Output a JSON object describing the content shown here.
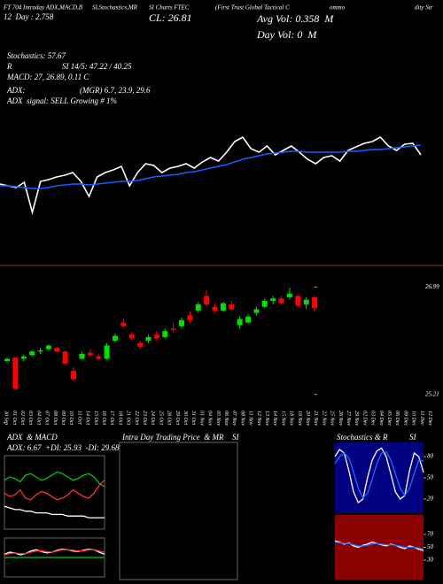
{
  "chart_data": [
    {
      "type": "line",
      "annotations": [
        "FT 704 Intraday ADX,MACD,B",
        "SI,Stochastics,MR",
        "SI Charts FTEC",
        "(First Trust Global Tactical C",
        "ommo",
        "dity Str",
        "12  Day : 2.758",
        "CL: 26.81",
        "Avg Vol: 0.358  M",
        "Day Vol: 0  M",
        "Stochastics: 57.67",
        "R",
        "SI 14/5: 47.22 / 40.25",
        "MACD: 27, 26.89, 0.11 C",
        "ADX:",
        "(MGR) 6.7, 23.9, 29.6",
        "ADX  signal: SELL Growing # 1%"
      ],
      "ylim": [
        24.8,
        27.4
      ],
      "series": [
        {
          "color": "#ffffff",
          "values": [
            25.84,
            25.8,
            25.76,
            25.88,
            25.2,
            25.9,
            25.94,
            26.0,
            26.04,
            26.1,
            25.9,
            25.56,
            26.0,
            26.1,
            26.16,
            26.24,
            25.8,
            26.1,
            26.3,
            26.26,
            26.1,
            26.2,
            26.24,
            26.3,
            26.2,
            26.34,
            26.44,
            26.36,
            26.56,
            26.8,
            26.9,
            26.64,
            26.56,
            26.7,
            26.5,
            26.6,
            26.7,
            26.56,
            26.4,
            26.3,
            26.44,
            26.48,
            26.36,
            26.6,
            26.68,
            26.76,
            26.8,
            26.9,
            26.7,
            26.6,
            26.74,
            26.76,
            26.5
          ]
        },
        {
          "color": "#1560ff",
          "values": [
            25.8,
            25.8,
            25.78,
            25.76,
            25.74,
            25.74,
            25.76,
            25.8,
            25.82,
            25.84,
            25.84,
            25.82,
            25.84,
            25.86,
            25.88,
            25.9,
            25.9,
            25.92,
            25.96,
            26.0,
            26.02,
            26.04,
            26.06,
            26.1,
            26.12,
            26.16,
            26.2,
            26.24,
            26.28,
            26.34,
            26.4,
            26.44,
            26.48,
            26.52,
            26.54,
            26.56,
            26.58,
            26.58,
            26.56,
            26.56,
            26.56,
            26.56,
            26.56,
            26.58,
            26.58,
            26.6,
            26.62,
            26.62,
            26.64,
            26.66,
            26.68,
            26.7,
            26.72
          ]
        }
      ]
    },
    {
      "type": "candlestick",
      "categories": [
        "30 Sep",
        "01 Oct",
        "02 Oct",
        "03 Oct",
        "04 Oct",
        "07 Oct",
        "08 Oct",
        "09 Oct",
        "10 Oct",
        "11 Oct",
        "14 Oct",
        "15 Oct",
        "16 Oct",
        "17 Oct",
        "18 Oct",
        "21 Oct",
        "22 Oct",
        "23 Oct",
        "24 Oct",
        "25 Oct",
        "28 Oct",
        "29 Oct",
        "30 Oct",
        "31 Oct",
        "01 Nov",
        "04 Nov",
        "05 Nov",
        "06 Nov",
        "07 Nov",
        "08 Nov",
        "11 Nov",
        "12 Nov",
        "13 Nov",
        "14 Nov",
        "15 Nov",
        "18 Nov",
        "19 Nov",
        "20 Nov",
        "21 Nov",
        "22 Nov",
        "25 Nov",
        "26 Nov",
        "27 Nov",
        "29 Nov",
        "02 Dec",
        "03 Dec",
        "04 Dec",
        "05 Dec",
        "06 Dec",
        "09 Dec",
        "10 Dec",
        "11 Dec",
        "12 Dec"
      ],
      "open": [
        25.76,
        25.82,
        25.8,
        25.86,
        25.92,
        25.96,
        25.98,
        25.92,
        25.6,
        25.8,
        25.9,
        25.84,
        25.8,
        26.1,
        26.4,
        26.2,
        26.06,
        26.1,
        26.2,
        26.16,
        26.3,
        26.34,
        26.52,
        26.6,
        26.84,
        26.66,
        26.6,
        26.7,
        26.36,
        26.4,
        26.56,
        26.66,
        26.76,
        26.8,
        26.82,
        26.84,
        26.7,
        26.82,
        null,
        null,
        null,
        null,
        null,
        null,
        null,
        null,
        null,
        null,
        null,
        null,
        null,
        null,
        null
      ],
      "high": [
        25.82,
        25.84,
        25.86,
        25.94,
        25.98,
        26.04,
        26.0,
        25.94,
        25.66,
        25.92,
        25.96,
        25.88,
        26.06,
        26.22,
        26.46,
        26.24,
        26.1,
        26.2,
        26.26,
        26.3,
        26.4,
        26.48,
        26.58,
        26.74,
        26.94,
        26.72,
        26.74,
        26.76,
        26.5,
        26.54,
        26.66,
        26.8,
        26.84,
        26.84,
        26.98,
        26.86,
        26.82,
        26.84,
        null,
        null,
        null,
        null,
        null,
        null,
        null,
        null,
        null,
        null,
        null,
        null,
        null,
        null,
        null
      ],
      "low": [
        25.74,
        25.28,
        25.76,
        25.84,
        25.88,
        25.94,
        25.9,
        25.7,
        25.44,
        25.78,
        25.84,
        25.78,
        25.78,
        26.08,
        26.3,
        26.12,
        25.96,
        26.06,
        26.1,
        26.14,
        26.24,
        26.3,
        26.4,
        26.56,
        26.66,
        26.56,
        26.58,
        26.6,
        26.3,
        26.38,
        26.52,
        26.64,
        26.7,
        26.7,
        26.78,
        26.66,
        26.62,
        26.58,
        null,
        null,
        null,
        null,
        null,
        null,
        null,
        null,
        null,
        null,
        null,
        null,
        null,
        null,
        null
      ],
      "close": [
        25.8,
        25.3,
        25.84,
        25.92,
        25.94,
        26.02,
        25.92,
        25.72,
        25.46,
        25.88,
        25.86,
        25.8,
        26.02,
        26.18,
        26.34,
        26.14,
        26.0,
        26.16,
        26.14,
        26.26,
        26.28,
        26.44,
        26.44,
        26.7,
        26.7,
        26.6,
        26.72,
        26.62,
        26.46,
        26.5,
        26.62,
        26.76,
        26.8,
        26.72,
        26.88,
        26.68,
        26.78,
        26.64,
        null,
        null,
        null,
        null,
        null,
        null,
        null,
        null,
        null,
        null,
        null,
        null,
        null,
        null,
        null
      ],
      "up_color": "#00dd00",
      "down_color": "#ff0000",
      "ylim": [
        25.0,
        27.2
      ],
      "yticks": [
        26.99,
        25.21
      ]
    },
    {
      "type": "line",
      "title": [
        "ADX  & MACD"
      ],
      "annotations": [
        "ADX: 6.67  +DI: 25.93  -DI: 29.68"
      ],
      "ylim": [
        0,
        45
      ],
      "series": [
        {
          "color": "#00cc00",
          "values": [
            30,
            32,
            31,
            29,
            33,
            34,
            32,
            30,
            31,
            33,
            35,
            34,
            32,
            30,
            31,
            33,
            34,
            32,
            28,
            26
          ]
        },
        {
          "color": "#ff3030",
          "values": [
            22,
            20,
            21,
            24,
            19,
            18,
            21,
            23,
            22,
            20,
            18,
            19,
            21,
            24,
            22,
            20,
            19,
            22,
            27,
            30
          ]
        },
        {
          "color": "#ffffff",
          "values": [
            14,
            13,
            12,
            12,
            11,
            11,
            10,
            10,
            10,
            9,
            9,
            9,
            8,
            8,
            8,
            8,
            7,
            7,
            7,
            7
          ]
        }
      ]
    },
    {
      "type": "line",
      "ylim": [
        -0.3,
        0.3
      ],
      "series": [
        {
          "color": "#00cc00",
          "values": [
            0,
            0,
            0,
            0,
            0,
            0,
            0,
            0,
            0,
            0,
            0,
            0,
            0,
            0,
            0,
            0,
            0,
            0,
            0,
            0
          ]
        },
        {
          "color": "#ffffff",
          "values": [
            0.05,
            0.08,
            0.07,
            0.04,
            0.06,
            0.1,
            0.12,
            0.09,
            0.07,
            0.08,
            0.11,
            0.13,
            0.12,
            0.1,
            0.09,
            0.11,
            0.13,
            0.12,
            0.08,
            0.05
          ]
        },
        {
          "color": "#ff3030",
          "values": [
            0.04,
            0.06,
            0.07,
            0.06,
            0.06,
            0.08,
            0.1,
            0.1,
            0.09,
            0.08,
            0.1,
            0.12,
            0.12,
            0.11,
            0.1,
            0.1,
            0.12,
            0.12,
            0.1,
            0.08
          ]
        }
      ]
    },
    {
      "type": "line",
      "title": [
        "Intra Day Trading Price  & MR",
        "SI"
      ],
      "series": []
    },
    {
      "type": "line",
      "title": [
        "Stochastics & R",
        "SI"
      ],
      "background": "#000080",
      "ylim": [
        0,
        100
      ],
      "yticks": [
        20,
        50,
        80
      ],
      "series": [
        {
          "color": "#ffffff",
          "values": [
            80,
            90,
            85,
            60,
            30,
            15,
            20,
            50,
            75,
            88,
            92,
            80,
            55,
            30,
            20,
            25,
            60,
            85,
            80,
            57.67
          ]
        },
        {
          "color": "#1e6bff",
          "values": [
            70,
            80,
            85,
            78,
            58,
            35,
            22,
            28,
            48,
            70,
            85,
            87,
            75,
            55,
            35,
            25,
            35,
            56,
            75,
            74
          ]
        }
      ]
    },
    {
      "type": "line",
      "background": "#8b0000",
      "ylim": [
        0,
        100
      ],
      "yticks": [
        30,
        50,
        70
      ],
      "series": [
        {
          "color": "#ffffff",
          "values": [
            60,
            58,
            55,
            57,
            52,
            50,
            53,
            55,
            58,
            56,
            54,
            52,
            55,
            53,
            50,
            48,
            52,
            50,
            47,
            45
          ]
        },
        {
          "color": "#1e6bff",
          "values": [
            58,
            57,
            56,
            56,
            54,
            52,
            52,
            53,
            55,
            56,
            55,
            54,
            54,
            53,
            52,
            50,
            50,
            50,
            49,
            47
          ]
        }
      ]
    }
  ]
}
